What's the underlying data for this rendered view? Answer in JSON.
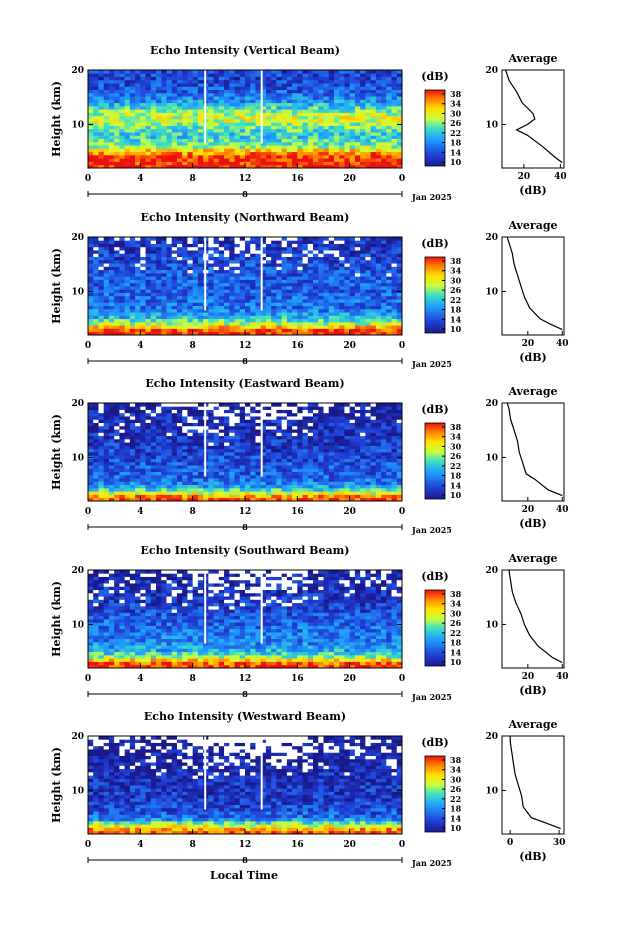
{
  "panels": [
    {
      "title": "Echo Intensity (Vertical Beam)",
      "avg_xticks": [
        "20",
        "40"
      ],
      "avg_xlim": [
        8,
        42
      ]
    },
    {
      "title": "Echo Intensity (Northward Beam)",
      "avg_xticks": [
        "20",
        "40"
      ],
      "avg_xlim": [
        5,
        41
      ]
    },
    {
      "title": "Echo Intensity (Eastward Beam)",
      "avg_xticks": [
        "20",
        "40"
      ],
      "avg_xlim": [
        5,
        41
      ]
    },
    {
      "title": "Echo Intensity (Southward Beam)",
      "avg_xticks": [
        "20",
        "40"
      ],
      "avg_xlim": [
        5,
        41
      ]
    },
    {
      "title": "Echo Intensity (Westward Beam)",
      "avg_xticks": [
        "0",
        "30"
      ],
      "avg_xlim": [
        -5,
        33
      ]
    }
  ],
  "ylabel": "Height (km)",
  "yticks": [
    "20",
    "10"
  ],
  "xticks": [
    "0",
    "4",
    "8",
    "12",
    "16",
    "20",
    "0"
  ],
  "day_label": "8",
  "month_label": "Jan 2025",
  "xlabel": "Local Time",
  "colorbar": {
    "unit_label": "(dB)",
    "ticks": [
      "38",
      "34",
      "30",
      "26",
      "22",
      "18",
      "14",
      "10"
    ]
  },
  "average": {
    "title": "Average",
    "unit_label": "(dB)"
  },
  "chart_data": [
    {
      "type": "heatmap",
      "title": "Echo Intensity (Vertical Beam)",
      "xlabel": "Local Time",
      "ylabel": "Height (km)",
      "xlim": [
        0,
        24
      ],
      "ylim": [
        2,
        20
      ],
      "zlim": [
        10,
        38
      ],
      "profile_levels": [
        2,
        20
      ],
      "layers": [
        [
          2,
          38
        ],
        [
          4,
          37
        ],
        [
          5,
          33
        ],
        [
          6,
          26
        ],
        [
          8,
          22
        ],
        [
          10,
          26
        ],
        [
          11,
          29
        ],
        [
          12,
          27
        ],
        [
          14,
          20
        ],
        [
          16,
          16
        ],
        [
          18,
          14
        ],
        [
          20,
          14
        ]
      ],
      "average_profile": [
        [
          3,
          41
        ],
        [
          4,
          37
        ],
        [
          6,
          30
        ],
        [
          8,
          22
        ],
        [
          9,
          16
        ],
        [
          10,
          22
        ],
        [
          11,
          26
        ],
        [
          12,
          25
        ],
        [
          14,
          19
        ],
        [
          16,
          16
        ],
        [
          18,
          12
        ],
        [
          20,
          10
        ]
      ]
    },
    {
      "type": "heatmap",
      "title": "Echo Intensity (Northward Beam)",
      "xlabel": "Local Time",
      "ylabel": "Height (km)",
      "xlim": [
        0,
        24
      ],
      "ylim": [
        2,
        20
      ],
      "zlim": [
        10,
        38
      ],
      "layers": [
        [
          2,
          38
        ],
        [
          3,
          36
        ],
        [
          4,
          28
        ],
        [
          5,
          22
        ],
        [
          7,
          17
        ],
        [
          10,
          16
        ],
        [
          12,
          16
        ],
        [
          14,
          15
        ],
        [
          16,
          14
        ],
        [
          18,
          13
        ],
        [
          20,
          12
        ]
      ],
      "average_profile": [
        [
          3,
          40
        ],
        [
          4,
          33
        ],
        [
          5,
          27
        ],
        [
          7,
          21
        ],
        [
          9,
          18
        ],
        [
          11,
          16
        ],
        [
          13,
          14
        ],
        [
          15,
          12
        ],
        [
          17,
          11
        ],
        [
          19,
          9
        ],
        [
          20,
          8
        ]
      ]
    },
    {
      "type": "heatmap",
      "title": "Echo Intensity (Eastward Beam)",
      "xlabel": "Local Time",
      "ylabel": "Height (km)",
      "xlim": [
        0,
        24
      ],
      "ylim": [
        2,
        20
      ],
      "zlim": [
        10,
        38
      ],
      "layers": [
        [
          2,
          38
        ],
        [
          3,
          33
        ],
        [
          4,
          24
        ],
        [
          5,
          18
        ],
        [
          7,
          16
        ],
        [
          9,
          15
        ],
        [
          11,
          14
        ],
        [
          13,
          13
        ],
        [
          15,
          12
        ],
        [
          17,
          12
        ],
        [
          19,
          11
        ],
        [
          20,
          10
        ]
      ],
      "average_profile": [
        [
          3,
          40
        ],
        [
          4,
          32
        ],
        [
          6,
          24
        ],
        [
          7,
          19
        ],
        [
          9,
          17
        ],
        [
          11,
          15
        ],
        [
          13,
          14
        ],
        [
          15,
          12
        ],
        [
          17,
          10
        ],
        [
          19,
          9
        ],
        [
          20,
          8
        ]
      ]
    },
    {
      "type": "heatmap",
      "title": "Echo Intensity (Southward Beam)",
      "xlabel": "Local Time",
      "ylabel": "Height (km)",
      "xlim": [
        0,
        24
      ],
      "ylim": [
        2,
        20
      ],
      "zlim": [
        10,
        38
      ],
      "layers": [
        [
          2,
          38
        ],
        [
          3,
          35
        ],
        [
          4,
          27
        ],
        [
          5,
          21
        ],
        [
          7,
          18
        ],
        [
          9,
          17
        ],
        [
          11,
          16
        ],
        [
          13,
          14
        ],
        [
          15,
          13
        ],
        [
          17,
          12
        ],
        [
          19,
          11
        ],
        [
          20,
          11
        ]
      ],
      "average_profile": [
        [
          3,
          40
        ],
        [
          4,
          34
        ],
        [
          6,
          26
        ],
        [
          8,
          21
        ],
        [
          10,
          18
        ],
        [
          12,
          16
        ],
        [
          14,
          13
        ],
        [
          16,
          11
        ],
        [
          18,
          10
        ],
        [
          20,
          9
        ]
      ]
    },
    {
      "type": "heatmap",
      "title": "Echo Intensity (Westward Beam)",
      "xlabel": "Local Time",
      "ylabel": "Height (km)",
      "xlim": [
        0,
        24
      ],
      "ylim": [
        2,
        20
      ],
      "zlim": [
        10,
        38
      ],
      "layers": [
        [
          2,
          37
        ],
        [
          3,
          33
        ],
        [
          4,
          25
        ],
        [
          5,
          17
        ],
        [
          7,
          14
        ],
        [
          9,
          13
        ],
        [
          11,
          13
        ],
        [
          13,
          12
        ],
        [
          15,
          11
        ],
        [
          17,
          11
        ],
        [
          19,
          10
        ],
        [
          20,
          10
        ]
      ],
      "average_profile": [
        [
          3,
          31
        ],
        [
          4,
          22
        ],
        [
          5,
          13
        ],
        [
          7,
          8
        ],
        [
          9,
          7
        ],
        [
          11,
          5
        ],
        [
          13,
          3
        ],
        [
          15,
          2
        ],
        [
          17,
          1
        ],
        [
          19,
          0
        ],
        [
          20,
          0
        ]
      ]
    }
  ]
}
